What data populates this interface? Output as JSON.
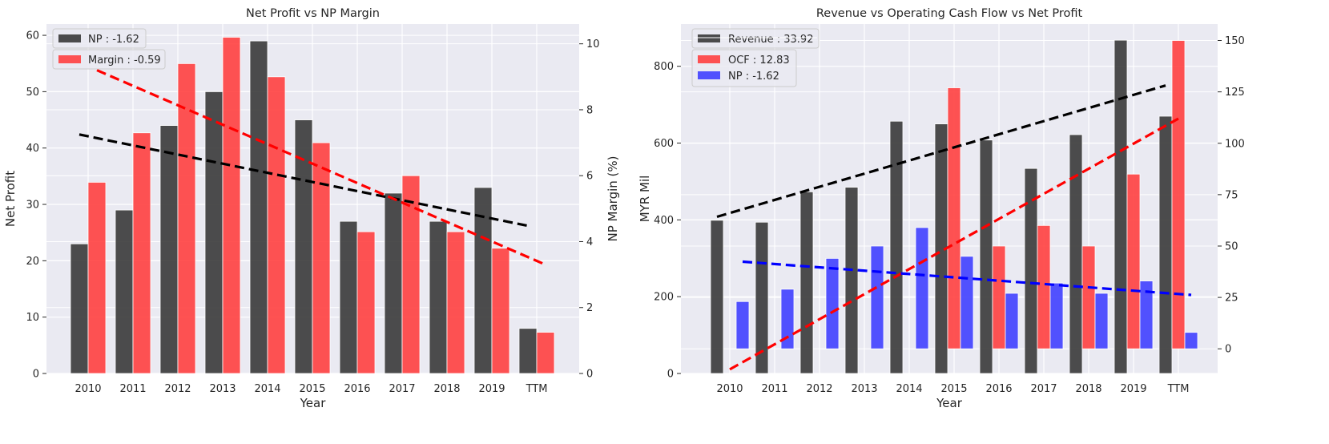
{
  "chart_data": [
    {
      "type": "bar",
      "title": "Net Profit vs NP Margin",
      "xlabel": "Year",
      "ylabel": "Net Profit",
      "y2label": "NP Margin (%)",
      "categories": [
        "2010",
        "2011",
        "2012",
        "2013",
        "2014",
        "2015",
        "2016",
        "2017",
        "2018",
        "2019",
        "TTM"
      ],
      "ylim": [
        0,
        62
      ],
      "y2lim": [
        0,
        10.6
      ],
      "yticks": [
        0,
        10,
        20,
        30,
        40,
        50,
        60
      ],
      "y2ticks": [
        0,
        2,
        4,
        6,
        8,
        10
      ],
      "grid": true,
      "legend_position": "top-left",
      "series": [
        {
          "name": "NP : -1.62",
          "axis": "left",
          "color": "#3a3a3a",
          "values": [
            23,
            29,
            44,
            50,
            59,
            45,
            27,
            32,
            27,
            33,
            8
          ]
        },
        {
          "name": "Margin : -0.59",
          "axis": "right",
          "color": "#ff4040",
          "values": [
            5.8,
            7.3,
            9.4,
            10.2,
            9.0,
            7.0,
            4.3,
            6.0,
            4.3,
            3.8,
            1.25
          ]
        }
      ],
      "trendlines": [
        {
          "series": "NP",
          "axis": "left",
          "color": "#000000",
          "from": {
            "x": "2010",
            "y": 42.4
          },
          "to": {
            "x": "TTM",
            "y": 26.2
          }
        },
        {
          "series": "Margin",
          "axis": "right",
          "color": "#ff0000",
          "from": {
            "x": "2010",
            "y": 9.2
          },
          "to": {
            "x": "TTM",
            "y": 3.3
          }
        }
      ]
    },
    {
      "type": "bar",
      "title": "Revenue vs Operating Cash Flow vs Net Profit",
      "xlabel": "Year",
      "ylabel": "MYR Mil",
      "y2label": "",
      "categories": [
        "2010",
        "2011",
        "2012",
        "2013",
        "2014",
        "2015",
        "2016",
        "2017",
        "2018",
        "2019",
        "TTM"
      ],
      "ylim": [
        0,
        910
      ],
      "y2lim": [
        -12,
        158
      ],
      "yticks": [
        0,
        200,
        400,
        600,
        800
      ],
      "y2ticks": [
        0,
        25,
        50,
        75,
        100,
        125,
        150
      ],
      "grid": true,
      "legend_position": "top-left",
      "series": [
        {
          "name": "Revenue : 33.92",
          "axis": "left",
          "color": "#3a3a3a",
          "values": [
            399,
            394,
            473,
            485,
            657,
            650,
            608,
            534,
            622,
            868,
            670
          ]
        },
        {
          "name": "OCF : 12.83",
          "axis": "right",
          "color": "#ff4040",
          "values": [
            0,
            0,
            0,
            0,
            0,
            127,
            50,
            60,
            50,
            85,
            150
          ]
        },
        {
          "name": "NP : -1.62",
          "axis": "right",
          "color": "#4040ff",
          "values": [
            23,
            29,
            44,
            50,
            59,
            45,
            27,
            32,
            27,
            33,
            8
          ]
        }
      ],
      "trendlines": [
        {
          "series": "Revenue",
          "axis": "left",
          "color": "#000000",
          "from": {
            "x": "2010",
            "y": 408
          },
          "to": {
            "x": "TTM",
            "y": 750
          }
        },
        {
          "series": "OCF",
          "axis": "right",
          "color": "#ff0000",
          "from": {
            "x": "2010",
            "y": -10
          },
          "to": {
            "x": "TTM",
            "y": 112
          }
        },
        {
          "series": "NP",
          "axis": "right",
          "color": "#0000ff",
          "from": {
            "x": "2010",
            "y": 42.4
          },
          "to": {
            "x": "TTM",
            "y": 26.2
          }
        }
      ]
    }
  ]
}
